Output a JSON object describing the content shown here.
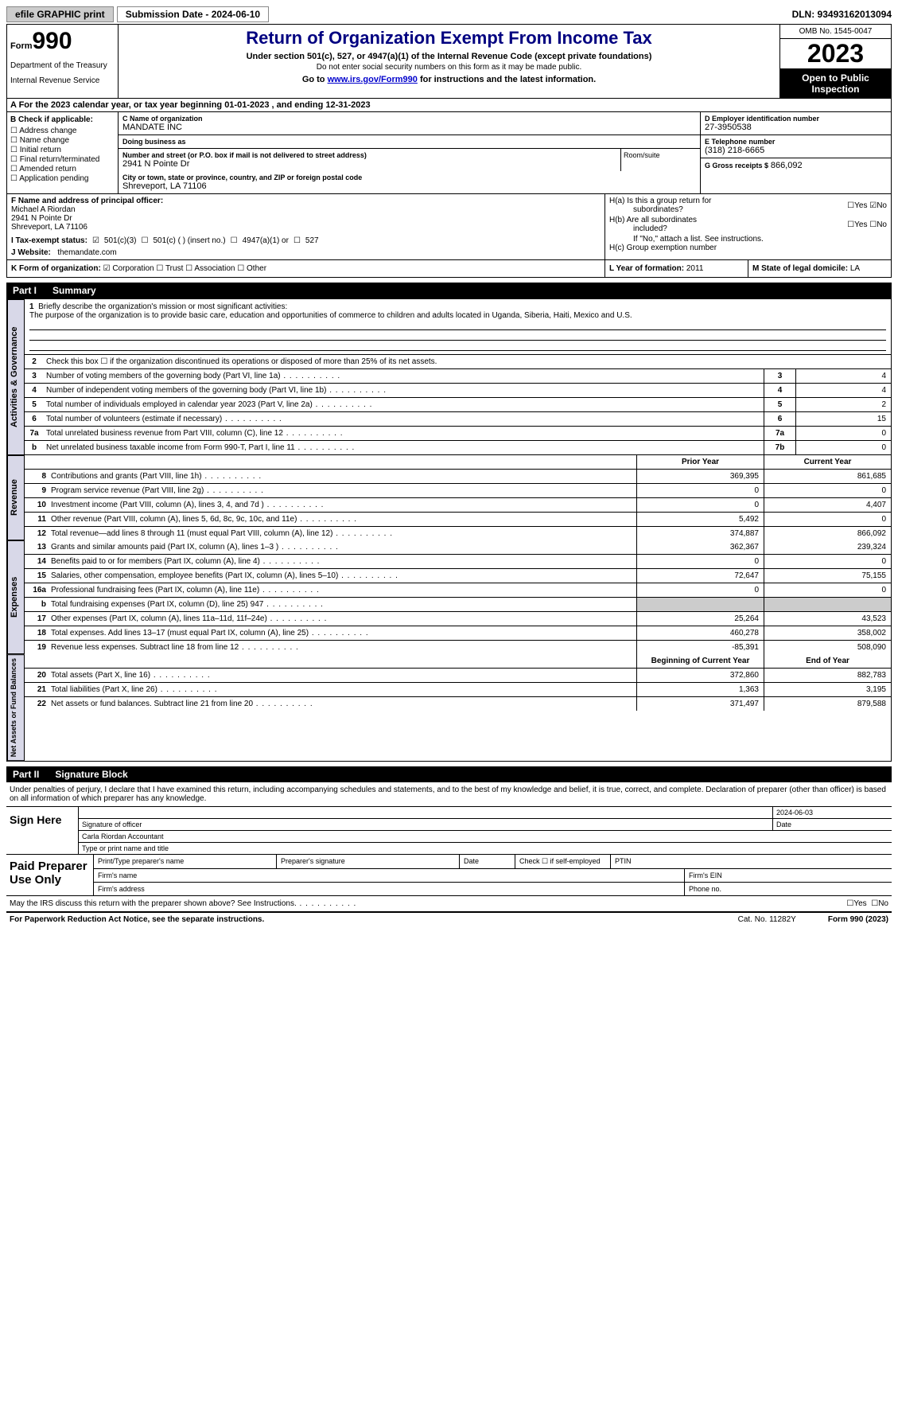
{
  "topbar": {
    "efile": "efile GRAPHIC print",
    "submission": "Submission Date - 2024-06-10",
    "dln": "DLN: 93493162013094"
  },
  "header": {
    "form_label": "Form",
    "form_num": "990",
    "dept": "Department of the Treasury",
    "irs": "Internal Revenue Service",
    "title": "Return of Organization Exempt From Income Tax",
    "sub1": "Under section 501(c), 527, or 4947(a)(1) of the Internal Revenue Code (except private foundations)",
    "sub2": "Do not enter social security numbers on this form as it may be made public.",
    "sub3_pre": "Go to ",
    "sub3_link": "www.irs.gov/Form990",
    "sub3_post": " for instructions and the latest information.",
    "omb": "OMB No. 1545-0047",
    "year": "2023",
    "open": "Open to Public Inspection"
  },
  "row_a": "A   For the 2023 calendar year, or tax year beginning 01-01-2023    , and ending 12-31-2023",
  "section_b": {
    "header": "B Check if applicable:",
    "items": [
      "Address change",
      "Name change",
      "Initial return",
      "Final return/terminated",
      "Amended return",
      "Application pending"
    ]
  },
  "section_c": {
    "name_label": "C Name of organization",
    "name_val": "MANDATE INC",
    "dba_label": "Doing business as",
    "dba_val": "",
    "street_label": "Number and street (or P.O. box if mail is not delivered to street address)",
    "street_val": "2941 N Pointe Dr",
    "room_label": "Room/suite",
    "city_label": "City or town, state or province, country, and ZIP or foreign postal code",
    "city_val": "Shreveport, LA  71106"
  },
  "section_d": {
    "ein_label": "D Employer identification number",
    "ein_val": "27-3950538",
    "phone_label": "E Telephone number",
    "phone_val": "(318) 218-6665",
    "gross_label": "G Gross receipts $",
    "gross_val": "866,092"
  },
  "section_f": {
    "label": "F  Name and address of principal officer:",
    "name": "Michael A Riordan",
    "street": "2941 N Pointe Dr",
    "city": "Shreveport, LA  71106"
  },
  "section_h": {
    "ha1": "H(a)  Is this a group return for",
    "ha2": "subordinates?",
    "hb1": "H(b)  Are all subordinates",
    "hb2": "included?",
    "hb_note": "If \"No,\" attach a list. See instructions.",
    "hc": "H(c)  Group exemption number",
    "yes": "Yes",
    "no": "No"
  },
  "tax_status": {
    "label": "I     Tax-exempt status:",
    "t1": "501(c)(3)",
    "t2": "501(c) (  ) (insert no.)",
    "t3": "4947(a)(1) or",
    "t4": "527"
  },
  "website": {
    "label": "J    Website:",
    "val": "themandate.com"
  },
  "klm": {
    "k_label": "K Form of organization:",
    "k_opts": [
      "Corporation",
      "Trust",
      "Association",
      "Other"
    ],
    "l_label": "L Year of formation:",
    "l_val": "2011",
    "m_label": "M State of legal domicile:",
    "m_val": "LA"
  },
  "part1": {
    "num": "Part I",
    "title": "Summary"
  },
  "governance": {
    "label": "Activities & Governance",
    "q1_label": "1",
    "q1_text": "Briefly describe the organization's mission or most significant activities:",
    "q1_val": "The purpose of the organization is to provide basic care, education and opportunities of commerce to children and adults located in Uganda, Siberia, Haiti, Mexico and U.S.",
    "q2_label": "2",
    "q2_text": "Check this box ☐  if the organization discontinued its operations or disposed of more than 25% of its net assets.",
    "rows": [
      {
        "n": "3",
        "t": "Number of voting members of the governing body (Part VI, line 1a)",
        "box": "3",
        "v": "4"
      },
      {
        "n": "4",
        "t": "Number of independent voting members of the governing body (Part VI, line 1b)",
        "box": "4",
        "v": "4"
      },
      {
        "n": "5",
        "t": "Total number of individuals employed in calendar year 2023 (Part V, line 2a)",
        "box": "5",
        "v": "2"
      },
      {
        "n": "6",
        "t": "Total number of volunteers (estimate if necessary)",
        "box": "6",
        "v": "15"
      },
      {
        "n": "7a",
        "t": "Total unrelated business revenue from Part VIII, column (C), line 12",
        "box": "7a",
        "v": "0"
      },
      {
        "n": "b",
        "t": "Net unrelated business taxable income from Form 990-T, Part I, line 11",
        "box": "7b",
        "v": "0"
      }
    ]
  },
  "revenue": {
    "label": "Revenue",
    "prior": "Prior Year",
    "current": "Current Year",
    "rows": [
      {
        "n": "8",
        "t": "Contributions and grants (Part VIII, line 1h)",
        "p": "369,395",
        "c": "861,685"
      },
      {
        "n": "9",
        "t": "Program service revenue (Part VIII, line 2g)",
        "p": "0",
        "c": "0"
      },
      {
        "n": "10",
        "t": "Investment income (Part VIII, column (A), lines 3, 4, and 7d )",
        "p": "0",
        "c": "4,407"
      },
      {
        "n": "11",
        "t": "Other revenue (Part VIII, column (A), lines 5, 6d, 8c, 9c, 10c, and 11e)",
        "p": "5,492",
        "c": "0"
      },
      {
        "n": "12",
        "t": "Total revenue—add lines 8 through 11 (must equal Part VIII, column (A), line 12)",
        "p": "374,887",
        "c": "866,092"
      }
    ]
  },
  "expenses": {
    "label": "Expenses",
    "rows": [
      {
        "n": "13",
        "t": "Grants and similar amounts paid (Part IX, column (A), lines 1–3 )",
        "p": "362,367",
        "c": "239,324"
      },
      {
        "n": "14",
        "t": "Benefits paid to or for members (Part IX, column (A), line 4)",
        "p": "0",
        "c": "0"
      },
      {
        "n": "15",
        "t": "Salaries, other compensation, employee benefits (Part IX, column (A), lines 5–10)",
        "p": "72,647",
        "c": "75,155"
      },
      {
        "n": "16a",
        "t": "Professional fundraising fees (Part IX, column (A), line 11e)",
        "p": "0",
        "c": "0"
      },
      {
        "n": "b",
        "t": "Total fundraising expenses (Part IX, column (D), line 25) 947",
        "p": "",
        "c": "",
        "shade": true
      },
      {
        "n": "17",
        "t": "Other expenses (Part IX, column (A), lines 11a–11d, 11f–24e)",
        "p": "25,264",
        "c": "43,523"
      },
      {
        "n": "18",
        "t": "Total expenses. Add lines 13–17 (must equal Part IX, column (A), line 25)",
        "p": "460,278",
        "c": "358,002"
      },
      {
        "n": "19",
        "t": "Revenue less expenses. Subtract line 18 from line 12",
        "p": "-85,391",
        "c": "508,090"
      }
    ]
  },
  "netassets": {
    "label": "Net Assets or Fund Balances",
    "begin": "Beginning of Current Year",
    "end": "End of Year",
    "rows": [
      {
        "n": "20",
        "t": "Total assets (Part X, line 16)",
        "p": "372,860",
        "c": "882,783"
      },
      {
        "n": "21",
        "t": "Total liabilities (Part X, line 26)",
        "p": "1,363",
        "c": "3,195"
      },
      {
        "n": "22",
        "t": "Net assets or fund balances. Subtract line 21 from line 20",
        "p": "371,497",
        "c": "879,588"
      }
    ]
  },
  "part2": {
    "num": "Part II",
    "title": "Signature Block"
  },
  "signature": {
    "declaration": "Under penalties of perjury, I declare that I have examined this return, including accompanying schedules and statements, and to the best of my knowledge and belief, it is true, correct, and complete. Declaration of preparer (other than officer) is based on all information of which preparer has any knowledge.",
    "sign_here": "Sign Here",
    "date": "2024-06-03",
    "sig_officer": "Signature of officer",
    "officer_name": "Carla Riordan  Accountant",
    "type_name": "Type or print name and title",
    "date_label": "Date"
  },
  "preparer": {
    "label": "Paid Preparer Use Only",
    "print_name": "Print/Type preparer's name",
    "prep_sig": "Preparer's signature",
    "date": "Date",
    "check": "Check ☐ if self-employed",
    "ptin": "PTIN",
    "firm_name": "Firm's name",
    "firm_ein": "Firm's EIN",
    "firm_addr": "Firm's address",
    "phone": "Phone no."
  },
  "discuss": {
    "text": "May the IRS discuss this return with the preparer shown above? See Instructions.",
    "yes": "Yes",
    "no": "No"
  },
  "footer": {
    "notice": "For Paperwork Reduction Act Notice, see the separate instructions.",
    "cat": "Cat. No. 11282Y",
    "form": "Form 990 (2023)"
  }
}
